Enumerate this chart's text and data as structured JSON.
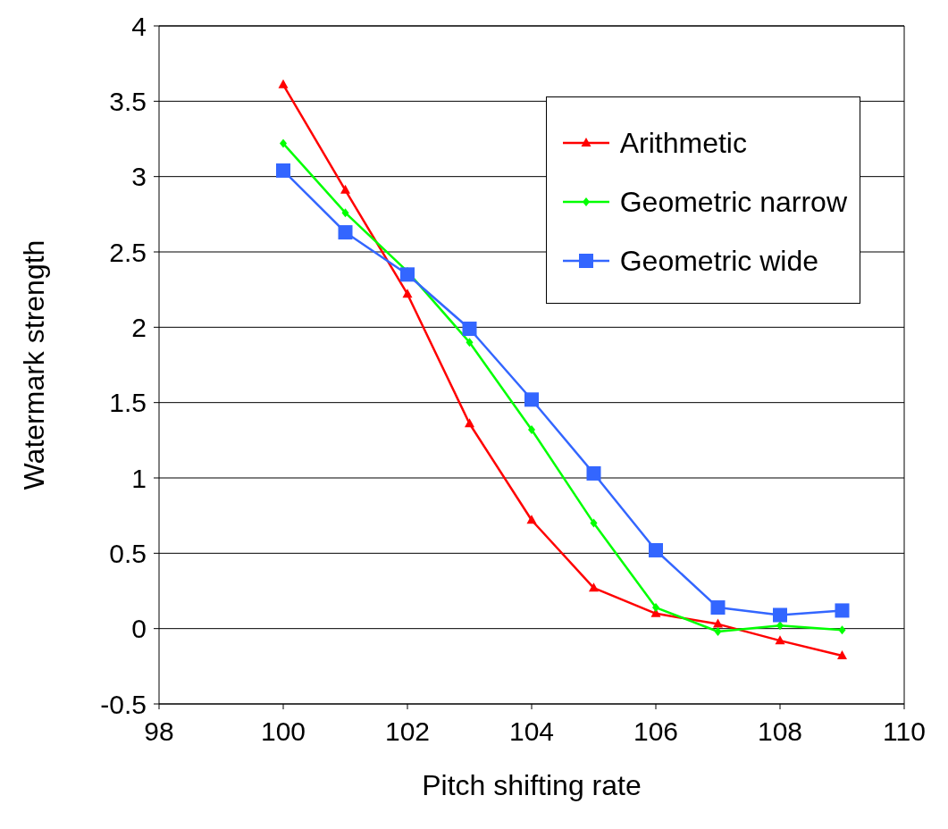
{
  "chart_data": {
    "type": "line",
    "xlabel": "Pitch shifting rate",
    "ylabel": "Watermark strength",
    "x": [
      100,
      101,
      102,
      103,
      104,
      105,
      106,
      107,
      108,
      109
    ],
    "xlim": [
      98,
      110
    ],
    "xticks": [
      98,
      100,
      102,
      104,
      106,
      108,
      110
    ],
    "ylim": [
      -0.5,
      4
    ],
    "yticks": [
      -0.5,
      0,
      0.5,
      1,
      1.5,
      2,
      2.5,
      3,
      3.5,
      4
    ],
    "grid": "y",
    "legend": "top right",
    "line_style": "solid",
    "series": [
      {
        "name": "Arithmetic",
        "color": "#ff0000",
        "marker": "triangle",
        "values": [
          3.61,
          2.91,
          2.22,
          1.36,
          0.72,
          0.27,
          0.1,
          0.03,
          -0.08,
          -0.18
        ]
      },
      {
        "name": "Geometric narrow",
        "color": "#00ff00",
        "marker": "diamond",
        "values": [
          3.22,
          2.76,
          2.37,
          1.9,
          1.32,
          0.7,
          0.14,
          -0.02,
          0.02,
          -0.01
        ]
      },
      {
        "name": "Geometric wide",
        "color": "#3366ff",
        "marker": "square",
        "values": [
          3.04,
          2.63,
          2.35,
          1.99,
          1.52,
          1.03,
          0.52,
          0.14,
          0.09,
          0.12
        ]
      }
    ]
  }
}
